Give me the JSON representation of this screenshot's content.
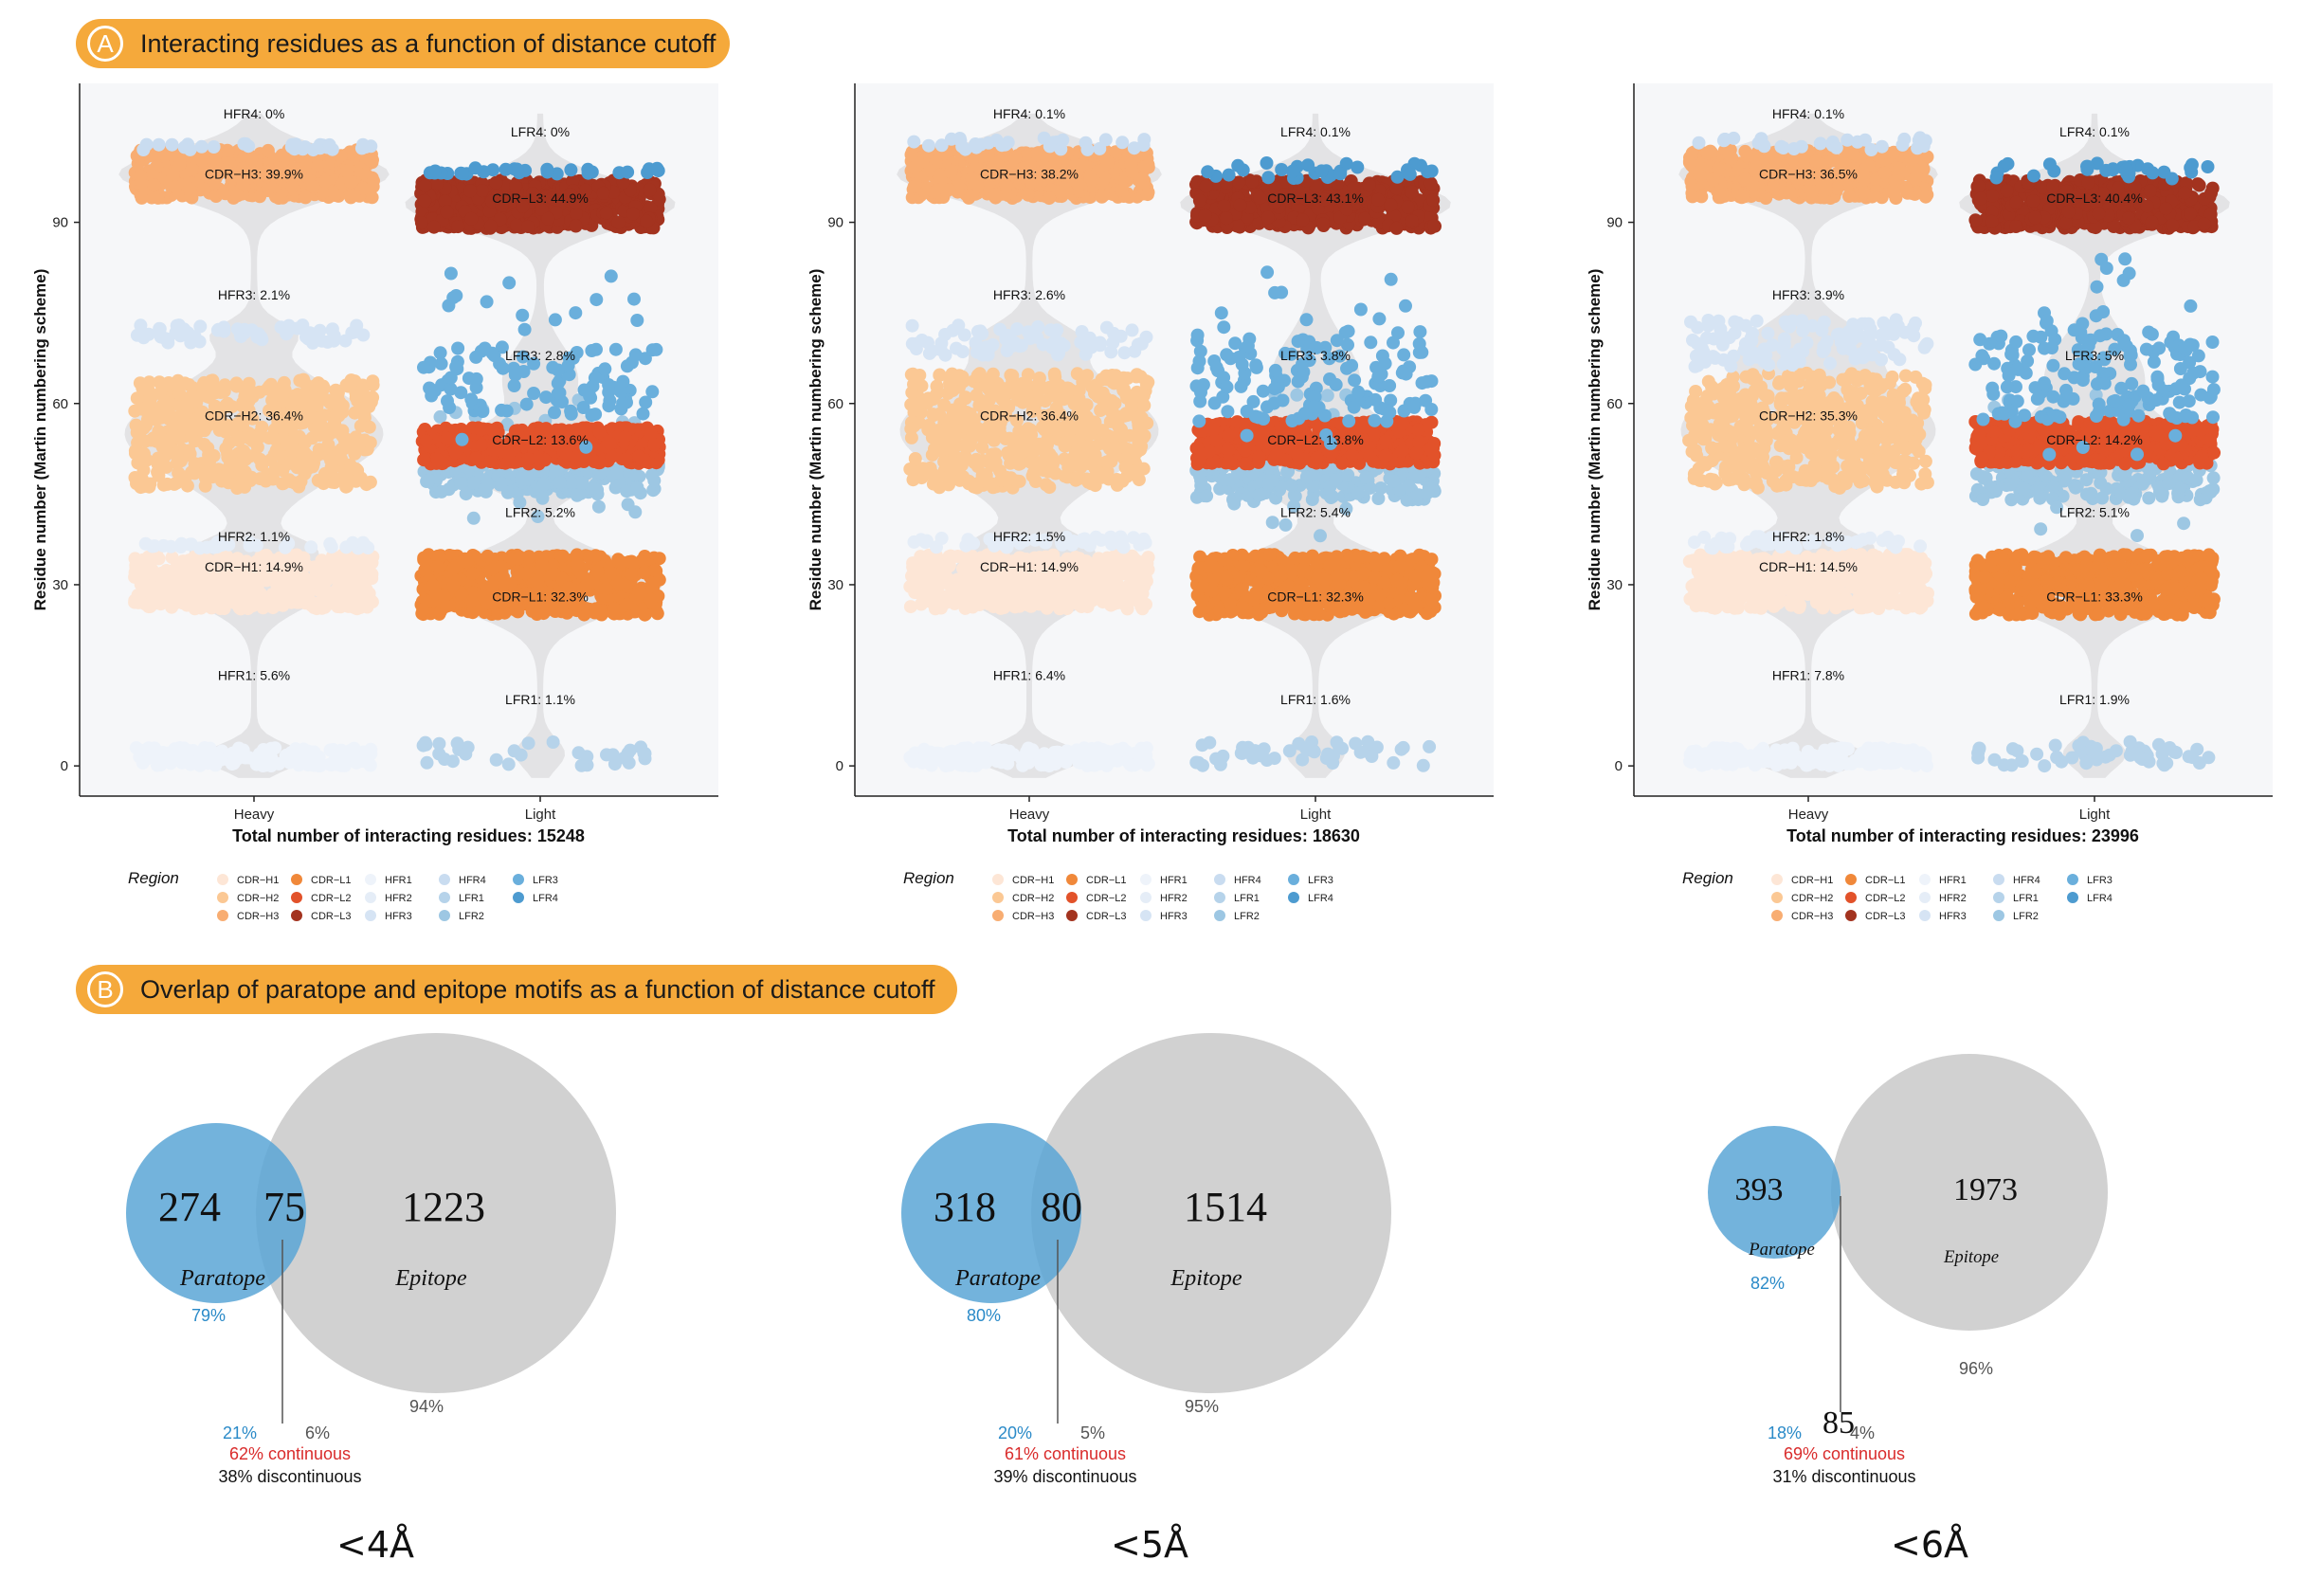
{
  "section_a": {
    "letter": "A",
    "title": "Interacting residues as a function of distance cutoff"
  },
  "section_b": {
    "letter": "B",
    "title": "Overlap of paratope and epitope motifs as a function of distance cutoff"
  },
  "colors": {
    "banner": "#f5a93b",
    "panel_bg": "#f6f7f9",
    "violin": "#e3e3e5",
    "paratope": "#5aa6d6",
    "epitope": "#c9c9c9",
    "pct_blue": "#2a8ac8",
    "pct_gray": "#555555",
    "continuous_red": "#d92b2b"
  },
  "region_colors": {
    "CDR-H1": "#fde6d6",
    "CDR-H2": "#fbc894",
    "CDR-H3": "#f8ad72",
    "CDR-L1": "#f0883a",
    "CDR-L2": "#e2522a",
    "CDR-L3": "#a3331f",
    "HFR1": "#eef3fa",
    "HFR2": "#e5edf7",
    "HFR3": "#d6e4f4",
    "HFR4": "#c9dcf0",
    "LFR1": "#b6d3ea",
    "LFR2": "#9dc7e3",
    "LFR3": "#6aafdc",
    "LFR4": "#4d9bd0"
  },
  "legend": {
    "title": "Region",
    "columns": [
      [
        "CDR−H1",
        "CDR−H2",
        "CDR−H3"
      ],
      [
        "CDR−L1",
        "CDR−L2",
        "CDR−L3"
      ],
      [
        "HFR1",
        "HFR2",
        "HFR3"
      ],
      [
        "HFR4",
        "LFR1",
        "LFR2"
      ],
      [
        "LFR3",
        "LFR4"
      ]
    ],
    "keys": [
      [
        "CDR-H1",
        "CDR-H2",
        "CDR-H3"
      ],
      [
        "CDR-L1",
        "CDR-L2",
        "CDR-L3"
      ],
      [
        "HFR1",
        "HFR2",
        "HFR3"
      ],
      [
        "HFR4",
        "LFR1",
        "LFR2"
      ],
      [
        "LFR3",
        "LFR4"
      ]
    ]
  },
  "chart_data": [
    {
      "type": "scatter",
      "title": "",
      "ylabel": "Residue number (Martin numbering scheme)",
      "xlabel": "Total number of interacting residues: 15248",
      "categories": [
        "Heavy",
        "Light"
      ],
      "ylim": [
        -5,
        113
      ],
      "yticks": [
        0,
        30,
        60,
        90
      ],
      "grid": false,
      "regions": [
        {
          "chain": "Heavy",
          "region": "HFR1",
          "label": "HFR1: 5.6%",
          "label_y": 15,
          "residue_range": [
            0,
            3
          ],
          "percent": 5.6
        },
        {
          "chain": "Heavy",
          "region": "CDR-H1",
          "label": "CDR−H1: 14.9%",
          "label_y": 33,
          "residue_range": [
            26,
            35
          ],
          "percent": 14.9
        },
        {
          "chain": "Heavy",
          "region": "HFR2",
          "label": "HFR2: 1.1%",
          "label_y": 38,
          "residue_range": [
            36,
            37
          ],
          "percent": 1.1
        },
        {
          "chain": "Heavy",
          "region": "CDR-H2",
          "label": "CDR−H2: 36.4%",
          "label_y": 58,
          "residue_range": [
            46,
            64
          ],
          "percent": 36.4
        },
        {
          "chain": "Heavy",
          "region": "HFR3",
          "label": "HFR3: 2.1%",
          "label_y": 78,
          "residue_range": [
            70,
            73
          ],
          "percent": 2.1
        },
        {
          "chain": "Heavy",
          "region": "CDR-H3",
          "label": "CDR−H3: 39.9%",
          "label_y": 98,
          "residue_range": [
            94,
            102
          ],
          "percent": 39.9
        },
        {
          "chain": "Heavy",
          "region": "HFR4",
          "label": "HFR4: 0%",
          "label_y": 108,
          "residue_range": [
            102,
            103
          ],
          "percent": 0
        },
        {
          "chain": "Light",
          "region": "LFR1",
          "label": "LFR1: 1.1%",
          "label_y": 11,
          "residue_range": [
            0,
            4
          ],
          "percent": 1.1
        },
        {
          "chain": "Light",
          "region": "CDR-L1",
          "label": "CDR−L1: 32.3%",
          "label_y": 28,
          "residue_range": [
            25,
            35
          ],
          "percent": 32.3
        },
        {
          "chain": "Light",
          "region": "LFR2",
          "label": "LFR2: 5.2%",
          "label_y": 42,
          "residue_range": [
            45,
            50
          ],
          "percent": 5.2
        },
        {
          "chain": "Light",
          "region": "CDR-L2",
          "label": "CDR−L2: 13.6%",
          "label_y": 54,
          "residue_range": [
            50,
            56
          ],
          "percent": 13.6
        },
        {
          "chain": "Light",
          "region": "LFR3",
          "label": "LFR3: 2.8%",
          "label_y": 68,
          "residue_range": [
            58,
            70
          ],
          "percent": 2.8
        },
        {
          "chain": "Light",
          "region": "CDR-L3",
          "label": "CDR−L3: 44.9%",
          "label_y": 94,
          "residue_range": [
            89,
            97
          ],
          "percent": 44.9
        },
        {
          "chain": "Light",
          "region": "LFR4",
          "label": "LFR4: 0%",
          "label_y": 105,
          "residue_range": [
            98,
            99
          ],
          "percent": 0
        }
      ]
    },
    {
      "type": "scatter",
      "title": "",
      "ylabel": "Residue number (Martin numbering scheme)",
      "xlabel": "Total number of interacting residues: 18630",
      "categories": [
        "Heavy",
        "Light"
      ],
      "ylim": [
        -5,
        113
      ],
      "yticks": [
        0,
        30,
        60,
        90
      ],
      "grid": false,
      "regions": [
        {
          "chain": "Heavy",
          "region": "HFR1",
          "label": "HFR1: 6.4%",
          "label_y": 15,
          "residue_range": [
            0,
            3
          ],
          "percent": 6.4
        },
        {
          "chain": "Heavy",
          "region": "CDR-H1",
          "label": "CDR−H1: 14.9%",
          "label_y": 33,
          "residue_range": [
            26,
            35
          ],
          "percent": 14.9
        },
        {
          "chain": "Heavy",
          "region": "HFR2",
          "label": "HFR2: 1.5%",
          "label_y": 38,
          "residue_range": [
            36,
            38
          ],
          "percent": 1.5
        },
        {
          "chain": "Heavy",
          "region": "CDR-H2",
          "label": "CDR−H2: 36.4%",
          "label_y": 58,
          "residue_range": [
            46,
            65
          ],
          "percent": 36.4
        },
        {
          "chain": "Heavy",
          "region": "HFR3",
          "label": "HFR3: 2.6%",
          "label_y": 78,
          "residue_range": [
            68,
            73
          ],
          "percent": 2.6
        },
        {
          "chain": "Heavy",
          "region": "CDR-H3",
          "label": "CDR−H3: 38.2%",
          "label_y": 98,
          "residue_range": [
            94,
            102
          ],
          "percent": 38.2
        },
        {
          "chain": "Heavy",
          "region": "HFR4",
          "label": "HFR4: 0.1%",
          "label_y": 108,
          "residue_range": [
            102,
            104
          ],
          "percent": 0.1
        },
        {
          "chain": "Light",
          "region": "LFR1",
          "label": "LFR1: 1.6%",
          "label_y": 11,
          "residue_range": [
            0,
            4
          ],
          "percent": 1.6
        },
        {
          "chain": "Light",
          "region": "CDR-L1",
          "label": "CDR−L1: 32.3%",
          "label_y": 28,
          "residue_range": [
            25,
            35
          ],
          "percent": 32.3
        },
        {
          "chain": "Light",
          "region": "LFR2",
          "label": "LFR2: 5.4%",
          "label_y": 42,
          "residue_range": [
            44,
            50
          ],
          "percent": 5.4
        },
        {
          "chain": "Light",
          "region": "CDR-L2",
          "label": "CDR−L2: 13.8%",
          "label_y": 54,
          "residue_range": [
            50,
            57
          ],
          "percent": 13.8
        },
        {
          "chain": "Light",
          "region": "LFR3",
          "label": "LFR3: 3.8%",
          "label_y": 68,
          "residue_range": [
            57,
            72
          ],
          "percent": 3.8
        },
        {
          "chain": "Light",
          "region": "CDR-L3",
          "label": "CDR−L3: 43.1%",
          "label_y": 94,
          "residue_range": [
            89,
            97
          ],
          "percent": 43.1
        },
        {
          "chain": "Light",
          "region": "LFR4",
          "label": "LFR4: 0.1%",
          "label_y": 105,
          "residue_range": [
            97,
            100
          ],
          "percent": 0.1
        }
      ]
    },
    {
      "type": "scatter",
      "title": "",
      "ylabel": "Residue number (Martin numbering scheme)",
      "xlabel": "Total number of interacting residues: 23996",
      "categories": [
        "Heavy",
        "Light"
      ],
      "ylim": [
        -5,
        113
      ],
      "yticks": [
        0,
        30,
        60,
        90
      ],
      "grid": false,
      "regions": [
        {
          "chain": "Heavy",
          "region": "HFR1",
          "label": "HFR1: 7.8%",
          "label_y": 15,
          "residue_range": [
            0,
            3
          ],
          "percent": 7.8
        },
        {
          "chain": "Heavy",
          "region": "CDR-H1",
          "label": "CDR−H1: 14.5%",
          "label_y": 33,
          "residue_range": [
            26,
            35
          ],
          "percent": 14.5
        },
        {
          "chain": "Heavy",
          "region": "HFR2",
          "label": "HFR2: 1.8%",
          "label_y": 38,
          "residue_range": [
            36,
            38
          ],
          "percent": 1.8
        },
        {
          "chain": "Heavy",
          "region": "CDR-H2",
          "label": "CDR−H2: 35.3%",
          "label_y": 58,
          "residue_range": [
            46,
            65
          ],
          "percent": 35.3
        },
        {
          "chain": "Heavy",
          "region": "HFR3",
          "label": "HFR3: 3.9%",
          "label_y": 78,
          "residue_range": [
            66,
            74
          ],
          "percent": 3.9
        },
        {
          "chain": "Heavy",
          "region": "CDR-H3",
          "label": "CDR−H3: 36.5%",
          "label_y": 98,
          "residue_range": [
            94,
            102
          ],
          "percent": 36.5
        },
        {
          "chain": "Heavy",
          "region": "HFR4",
          "label": "HFR4: 0.1%",
          "label_y": 108,
          "residue_range": [
            102,
            104
          ],
          "percent": 0.1
        },
        {
          "chain": "Light",
          "region": "LFR1",
          "label": "LFR1: 1.9%",
          "label_y": 11,
          "residue_range": [
            0,
            4
          ],
          "percent": 1.9
        },
        {
          "chain": "Light",
          "region": "CDR-L1",
          "label": "CDR−L1: 33.3%",
          "label_y": 28,
          "residue_range": [
            25,
            35
          ],
          "percent": 33.3
        },
        {
          "chain": "Light",
          "region": "LFR2",
          "label": "LFR2: 5.1%",
          "label_y": 42,
          "residue_range": [
            44,
            50
          ],
          "percent": 5.1
        },
        {
          "chain": "Light",
          "region": "CDR-L2",
          "label": "CDR−L2: 14.2%",
          "label_y": 54,
          "residue_range": [
            50,
            57
          ],
          "percent": 14.2
        },
        {
          "chain": "Light",
          "region": "LFR3",
          "label": "LFR3: 5%",
          "label_y": 68,
          "residue_range": [
            57,
            72
          ],
          "percent": 5
        },
        {
          "chain": "Light",
          "region": "CDR-L3",
          "label": "CDR−L3: 40.4%",
          "label_y": 94,
          "residue_range": [
            89,
            97
          ],
          "percent": 40.4
        },
        {
          "chain": "Light",
          "region": "LFR4",
          "label": "LFR4: 0.1%",
          "label_y": 105,
          "residue_range": [
            97,
            100
          ],
          "percent": 0.1
        }
      ]
    }
  ],
  "venns": [
    {
      "cutoff": "<4Å",
      "paratope_only": "274",
      "overlap": "75",
      "epitope_only": "1223",
      "paratope_label": "Paratope",
      "epitope_label": "Epitope",
      "paratope_pct": "79%",
      "epitope_pct": "94%",
      "overlap_pct_paratope": "21%",
      "overlap_pct_epitope": "6%",
      "overlap_number_below": "",
      "continuous": "62% continuous",
      "discontinuous": "38% discontinuous"
    },
    {
      "cutoff": "<5Å",
      "paratope_only": "318",
      "overlap": "80",
      "epitope_only": "1514",
      "paratope_label": "Paratope",
      "epitope_label": "Epitope",
      "paratope_pct": "80%",
      "epitope_pct": "95%",
      "overlap_pct_paratope": "20%",
      "overlap_pct_epitope": "5%",
      "overlap_number_below": "",
      "continuous": "61% continuous",
      "discontinuous": "39% discontinuous"
    },
    {
      "cutoff": "<6Å",
      "paratope_only": "393",
      "overlap": "85",
      "epitope_only": "1973",
      "paratope_label": "Paratope",
      "epitope_label": "Epitope",
      "paratope_pct": "82%",
      "epitope_pct": "96%",
      "overlap_pct_paratope": "18%",
      "overlap_pct_epitope": "4%",
      "overlap_number_below": "85",
      "continuous": "69% continuous",
      "discontinuous": "31% discontinuous"
    }
  ]
}
